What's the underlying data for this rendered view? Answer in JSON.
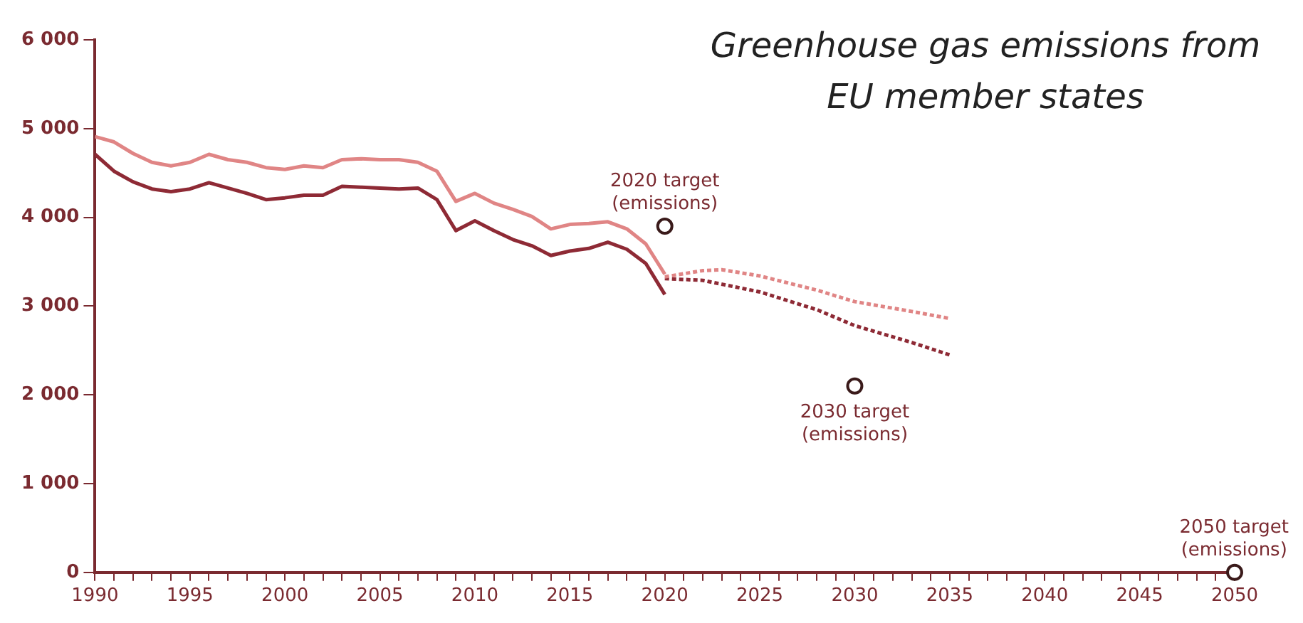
{
  "chart_data": {
    "type": "line",
    "title": "Greenhouse gas emissions from EU member states",
    "xlim": [
      1990,
      2050
    ],
    "xticks": [
      1990,
      {
        "value": 1991,
        "label": null
      },
      {
        "value": 1992,
        "label": null
      },
      {
        "value": 1993,
        "label": null
      },
      {
        "value": 1994,
        "label": null
      },
      1995,
      {
        "value": 1996,
        "label": null
      },
      {
        "value": 1997,
        "label": null
      },
      {
        "value": 1998,
        "label": null
      },
      {
        "value": 1999,
        "label": null
      },
      2000,
      {
        "value": 2001,
        "label": null
      },
      {
        "value": 2002,
        "label": null
      },
      {
        "value": 2003,
        "label": null
      },
      {
        "value": 2004,
        "label": null
      },
      2005,
      {
        "value": 2006,
        "label": null
      },
      {
        "value": 2007,
        "label": null
      },
      {
        "value": 2008,
        "label": null
      },
      {
        "value": 2009,
        "label": null
      },
      2010,
      {
        "value": 2011,
        "label": null
      },
      {
        "value": 2012,
        "label": null
      },
      {
        "value": 2013,
        "label": null
      },
      {
        "value": 2014,
        "label": null
      },
      2015,
      {
        "value": 2016,
        "label": null
      },
      {
        "value": 2017,
        "label": null
      },
      {
        "value": 2018,
        "label": null
      },
      {
        "value": 2019,
        "label": null
      },
      2020,
      {
        "value": 2021,
        "label": null
      },
      {
        "value": 2022,
        "label": null
      },
      {
        "value": 2023,
        "label": null
      },
      {
        "value": 2024,
        "label": null
      },
      2025,
      {
        "value": 2026,
        "label": null
      },
      {
        "value": 2027,
        "label": null
      },
      {
        "value": 2028,
        "label": null
      },
      {
        "value": 2029,
        "label": null
      },
      2030,
      {
        "value": 2031,
        "label": null
      },
      {
        "value": 2032,
        "label": null
      },
      {
        "value": 2033,
        "label": null
      },
      {
        "value": 2034,
        "label": null
      },
      2035,
      {
        "value": 2036,
        "label": null
      },
      {
        "value": 2037,
        "label": null
      },
      {
        "value": 2038,
        "label": null
      },
      {
        "value": 2039,
        "label": null
      },
      2040,
      {
        "value": 2041,
        "label": null
      },
      {
        "value": 2042,
        "label": null
      },
      {
        "value": 2043,
        "label": null
      },
      {
        "value": 2044,
        "label": null
      },
      2045,
      {
        "value": 2046,
        "label": null
      },
      {
        "value": 2047,
        "label": null
      },
      {
        "value": 2048,
        "label": null
      },
      {
        "value": 2049,
        "label": null
      },
      2050
    ],
    "ylim": [
      0,
      6000
    ],
    "yticks": [
      0,
      {
        "value": 1000,
        "label": "1 000"
      },
      {
        "value": 2000,
        "label": "2 000"
      },
      {
        "value": 3000,
        "label": "3 000"
      },
      {
        "value": 4000,
        "label": "4 000"
      },
      {
        "value": 5000,
        "label": "5 000"
      },
      {
        "value": 6000,
        "label": "6 000"
      }
    ],
    "grid": false,
    "legend": false,
    "series": [
      {
        "type": "line",
        "color": "#e08585",
        "line_style": "solid",
        "marker": "none",
        "x": [
          1990,
          1991,
          1992,
          1993,
          1994,
          1995,
          1996,
          1997,
          1998,
          1999,
          2000,
          2001,
          2002,
          2003,
          2004,
          2005,
          2006,
          2007,
          2008,
          2009,
          2010,
          2011,
          2012,
          2013,
          2014,
          2015,
          2016,
          2017,
          2018,
          2019,
          2020
        ],
        "values": [
          4910,
          4850,
          4720,
          4620,
          4580,
          4620,
          4710,
          4650,
          4620,
          4560,
          4540,
          4580,
          4560,
          4650,
          4660,
          4650,
          4650,
          4620,
          4520,
          4180,
          4270,
          4160,
          4090,
          4010,
          3870,
          3920,
          3930,
          3950,
          3870,
          3700,
          3360
        ]
      },
      {
        "type": "line",
        "color": "#8e2a35",
        "line_style": "solid",
        "marker": "none",
        "x": [
          1990,
          1991,
          1992,
          1993,
          1994,
          1995,
          1996,
          1997,
          1998,
          1999,
          2000,
          2001,
          2002,
          2003,
          2004,
          2005,
          2006,
          2007,
          2008,
          2009,
          2010,
          2011,
          2012,
          2013,
          2014,
          2015,
          2016,
          2017,
          2018,
          2019,
          2020
        ],
        "values": [
          4710,
          4520,
          4400,
          4320,
          4290,
          4320,
          4390,
          4330,
          4270,
          4200,
          4220,
          4250,
          4250,
          4350,
          4340,
          4330,
          4320,
          4330,
          4200,
          3850,
          3960,
          3850,
          3750,
          3680,
          3570,
          3620,
          3650,
          3720,
          3640,
          3480,
          3130
        ]
      },
      {
        "type": "line",
        "color": "#e08585",
        "line_style": "dotted",
        "marker": "none",
        "x": [
          2020,
          2022,
          2023,
          2025,
          2028,
          2030,
          2033,
          2035
        ],
        "values": [
          3330,
          3400,
          3410,
          3340,
          3180,
          3050,
          2940,
          2860
        ]
      },
      {
        "type": "line",
        "color": "#8e2a35",
        "line_style": "dotted",
        "marker": "none",
        "x": [
          2020,
          2022,
          2025,
          2028,
          2030,
          2033,
          2035
        ],
        "values": [
          3310,
          3290,
          3160,
          2960,
          2780,
          2590,
          2450
        ]
      },
      {
        "type": "scatter",
        "color": "#3a1a1a",
        "marker": "circle",
        "x": [
          2020,
          2030,
          2050
        ],
        "values": [
          3900,
          2100,
          0
        ]
      }
    ],
    "annotations": [
      {
        "text": "2020 target\n(emissions)",
        "x": 2020,
        "y": 3900
      },
      {
        "text": "2030 target\n(emissions)",
        "x": 2030,
        "y": 2100
      },
      {
        "text": "2050 target\n(emissions)",
        "x": 2050,
        "y": 0
      }
    ]
  }
}
